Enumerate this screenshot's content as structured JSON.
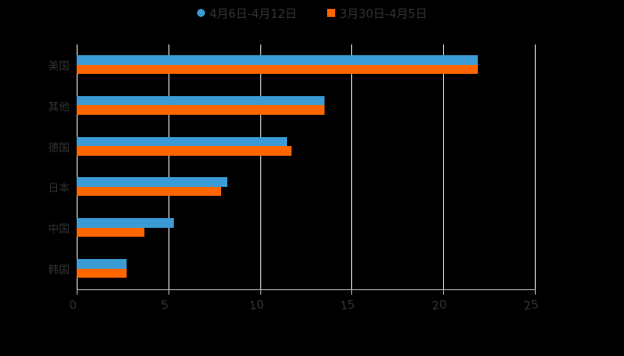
{
  "chart_data": {
    "type": "bar",
    "orientation": "horizontal",
    "title": "",
    "xlabel": "",
    "ylabel": "",
    "xlim": [
      0,
      25
    ],
    "xticks": [
      "0",
      "5",
      "10",
      "15",
      "20",
      "25"
    ],
    "grid": true,
    "legend_position": "top",
    "categories": [
      "美国",
      "其他",
      "德国",
      "日本",
      "中国",
      "韩国"
    ],
    "series": [
      {
        "name": "4月6日-4月12日",
        "color": "#3a9bd5",
        "marker": "circle",
        "values": [
          21.9,
          13.5,
          11.5,
          8.2,
          5.3,
          2.7
        ]
      },
      {
        "name": "3月30日-4月5日",
        "color": "#ff6600",
        "marker": "square",
        "values": [
          21.9,
          13.5,
          11.7,
          7.9,
          3.7,
          2.7
        ]
      }
    ]
  },
  "legend": {
    "items": [
      {
        "label": "4月6日-4月12日",
        "color": "#3a9bd5"
      },
      {
        "label": "3月30日-4月5日",
        "color": "#ff6600"
      }
    ]
  }
}
